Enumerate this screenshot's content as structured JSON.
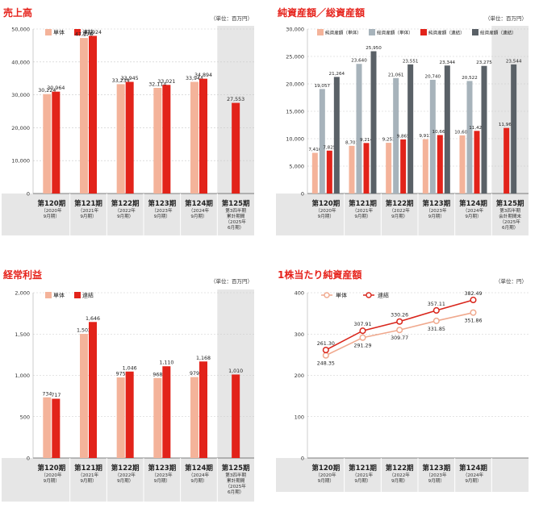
{
  "colors": {
    "title": "#e6231c",
    "single": "#f4b39a",
    "consolidated": "#e2231a",
    "single_equity": "#a7b3bb",
    "consolidated_equity": "#5a6167",
    "line_single": "#f0a98e",
    "line_consolidated": "#d9261c",
    "shade": "#e6e6e6"
  },
  "chart_data": [
    {
      "id": "sales",
      "type": "bar",
      "title": "売上高",
      "unit": "（単位：百万円）",
      "categories": [
        {
          "main": "第120期",
          "sub": [
            "（2020年",
            "9月期）"
          ]
        },
        {
          "main": "第121期",
          "sub": [
            "（2021年",
            "9月期）"
          ]
        },
        {
          "main": "第122期",
          "sub": [
            "（2022年",
            "9月期）"
          ]
        },
        {
          "main": "第123期",
          "sub": [
            "（2023年",
            "9月期）"
          ]
        },
        {
          "main": "第124期",
          "sub": [
            "（2024年",
            "9月期）"
          ]
        },
        {
          "main": "第125期",
          "sub": [
            "第3四半期",
            "累計期間",
            "（2025年",
            "6月期）"
          ]
        }
      ],
      "highlight_last": true,
      "ylim": [
        0,
        50000
      ],
      "yticks": [
        "0",
        "10,000",
        "20,000",
        "30,000",
        "40,000",
        "50,000"
      ],
      "series": [
        {
          "name": "単体",
          "color_key": "single",
          "values": [
            30224,
            47276,
            33239,
            32114,
            33944,
            null
          ],
          "labels": [
            "30,224",
            "47,276",
            "33,239",
            "32,114",
            "33,944",
            ""
          ]
        },
        {
          "name": "連結",
          "color_key": "consolidated",
          "values": [
            30964,
            47924,
            33945,
            33021,
            34894,
            27553
          ],
          "labels": [
            "30,964",
            "47,924",
            "33,945",
            "33,021",
            "34,894",
            "27,553"
          ]
        }
      ]
    },
    {
      "id": "equity",
      "type": "bar",
      "title": "純資産額／総資産額",
      "unit": "（単位：百万円）",
      "categories": [
        {
          "main": "第120期",
          "sub": [
            "（2020年",
            "9月期）"
          ]
        },
        {
          "main": "第121期",
          "sub": [
            "（2021年",
            "9月期）"
          ]
        },
        {
          "main": "第122期",
          "sub": [
            "（2022年",
            "9月期）"
          ]
        },
        {
          "main": "第123期",
          "sub": [
            "（2023年",
            "9月期）"
          ]
        },
        {
          "main": "第124期",
          "sub": [
            "（2024年",
            "9月期）"
          ]
        },
        {
          "main": "第125期",
          "sub": [
            "第3四半期",
            "会計期間末",
            "（2025年",
            "6月期）"
          ]
        }
      ],
      "highlight_last": true,
      "ylim": [
        0,
        30000
      ],
      "yticks": [
        "0",
        "5,000",
        "10,000",
        "15,000",
        "20,000",
        "25,000",
        "30,000"
      ],
      "series": [
        {
          "name": "純資産額（単体）",
          "color_key": "single",
          "values": [
            7416,
            8701,
            9253,
            9911,
            10609,
            null
          ],
          "labels": [
            "7,416",
            "8,701",
            "9,253",
            "9,911",
            "10,609",
            ""
          ]
        },
        {
          "name": "総資産額（単体）",
          "color_key": "single_equity",
          "values": [
            19057,
            23640,
            21061,
            20740,
            20522,
            null
          ],
          "labels": [
            "19,057",
            "23,640",
            "21,061",
            "20,740",
            "20,522",
            ""
          ]
        },
        {
          "name": "純資産額（連結）",
          "color_key": "consolidated",
          "values": [
            7825,
            9214,
            9865,
            10666,
            11424,
            11961
          ],
          "labels": [
            "7,825",
            "9,214",
            "9,865",
            "10,666",
            "11,424",
            "11,961"
          ]
        },
        {
          "name": "総資産額（連結）",
          "color_key": "consolidated_equity",
          "values": [
            21264,
            25950,
            23551,
            23344,
            23275,
            23544
          ],
          "labels": [
            "21,264",
            "25,950",
            "23,551",
            "23,344",
            "23,275",
            "23,544"
          ]
        }
      ]
    },
    {
      "id": "ordinary_profit",
      "type": "bar",
      "title": "経常利益",
      "unit": "（単位：百万円）",
      "categories": [
        {
          "main": "第120期",
          "sub": [
            "（2020年",
            "9月期）"
          ]
        },
        {
          "main": "第121期",
          "sub": [
            "（2021年",
            "9月期）"
          ]
        },
        {
          "main": "第122期",
          "sub": [
            "（2022年",
            "9月期）"
          ]
        },
        {
          "main": "第123期",
          "sub": [
            "（2023年",
            "9月期）"
          ]
        },
        {
          "main": "第124期",
          "sub": [
            "（2024年",
            "9月期）"
          ]
        },
        {
          "main": "第125期",
          "sub": [
            "第3四半期",
            "累計期間",
            "（2025年",
            "6月期）"
          ]
        }
      ],
      "highlight_last": true,
      "ylim": [
        0,
        2000
      ],
      "yticks": [
        "0",
        "500",
        "1,000",
        "1,500",
        "2,000"
      ],
      "series": [
        {
          "name": "単体",
          "color_key": "single",
          "values": [
            734,
            1502,
            975,
            968,
            979,
            null
          ],
          "labels": [
            "734",
            "1,502",
            "975",
            "968",
            "979",
            ""
          ]
        },
        {
          "name": "連結",
          "color_key": "consolidated",
          "values": [
            717,
            1646,
            1046,
            1110,
            1168,
            1010
          ],
          "labels": [
            "717",
            "1,646",
            "1,046",
            "1,110",
            "1,168",
            "1,010"
          ]
        }
      ]
    },
    {
      "id": "bps",
      "type": "line",
      "title": "1株当たり純資産額",
      "unit": "（単位：円）",
      "categories": [
        {
          "main": "第120期",
          "sub": [
            "（2020年",
            "9月期）"
          ]
        },
        {
          "main": "第121期",
          "sub": [
            "（2021年",
            "9月期）"
          ]
        },
        {
          "main": "第122期",
          "sub": [
            "（2022年",
            "9月期）"
          ]
        },
        {
          "main": "第123期",
          "sub": [
            "（2023年",
            "9月期）"
          ]
        },
        {
          "main": "第124期",
          "sub": [
            "（2024年",
            "9月期）"
          ]
        }
      ],
      "highlight_last": false,
      "ylim": [
        0,
        400
      ],
      "yticks": [
        "0",
        "100",
        "200",
        "300",
        "400"
      ],
      "series": [
        {
          "name": "単体",
          "color_key": "line_single",
          "values": [
            248.35,
            291.29,
            309.77,
            331.85,
            351.86
          ],
          "labels": [
            "248.35",
            "291.29",
            "309.77",
            "331.85",
            "351.86"
          ]
        },
        {
          "name": "連結",
          "color_key": "line_consolidated",
          "values": [
            261.3,
            307.91,
            330.26,
            357.11,
            382.49
          ],
          "labels": [
            "261.30",
            "307.91",
            "330.26",
            "357.11",
            "382.49"
          ]
        }
      ]
    }
  ]
}
